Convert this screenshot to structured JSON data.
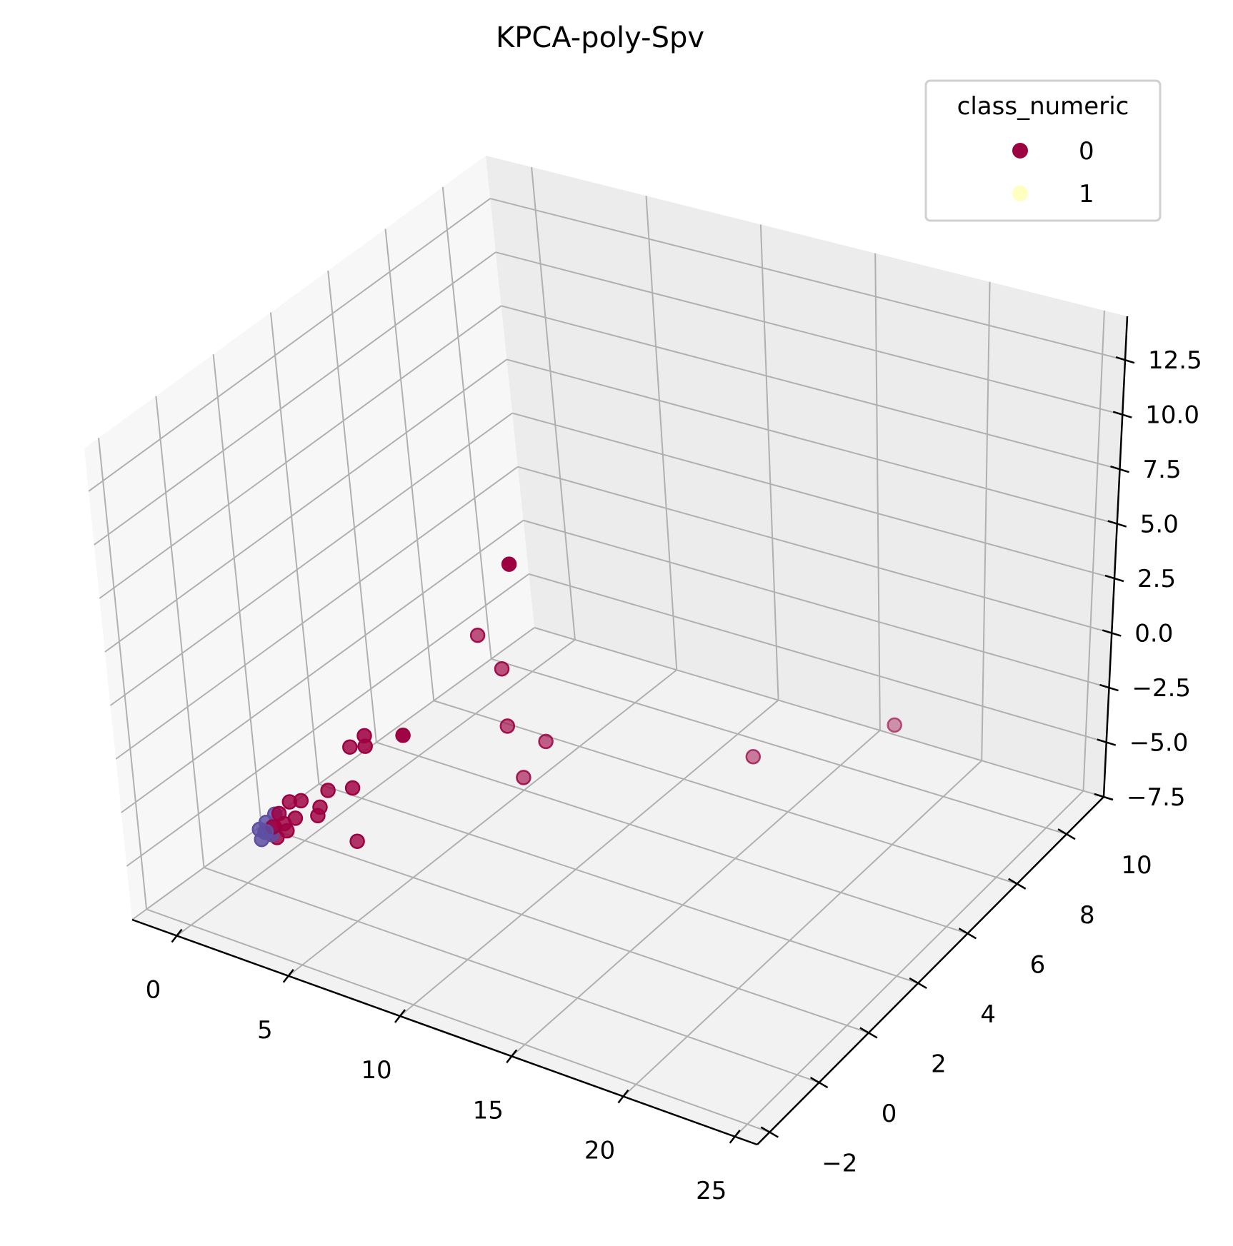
{
  "chart_data": {
    "type": "scatter3d",
    "title": "KPCA-poly-Spv",
    "xlabel": "",
    "ylabel": "",
    "zlabel": "",
    "xlim": [
      -2,
      26
    ],
    "ylim": [
      -2.5,
      11.5
    ],
    "zlim": [
      -7.5,
      14.5
    ],
    "x_ticks": [
      "0",
      "5",
      "10",
      "15",
      "20",
      "25"
    ],
    "x_tick_values": [
      0,
      5,
      10,
      15,
      20,
      25
    ],
    "y_ticks": [
      "−2",
      "0",
      "2",
      "4",
      "6",
      "8",
      "10"
    ],
    "y_tick_values": [
      -2,
      0,
      2,
      4,
      6,
      8,
      10
    ],
    "z_ticks": [
      "−7.5",
      "−5.0",
      "−2.5",
      "0.0",
      "2.5",
      "5.0",
      "7.5",
      "10.0",
      "12.5"
    ],
    "z_tick_values": [
      -7.5,
      -5,
      -2.5,
      0,
      2.5,
      5,
      7.5,
      10,
      12.5
    ],
    "grid": true,
    "legend": {
      "title": "class_numeric",
      "position": "top-right",
      "entries": [
        {
          "label": "0",
          "color": "#9e0142"
        },
        {
          "label": "1",
          "color": "#ffffbf"
        }
      ]
    },
    "colors": {
      "class0": "#9e0142",
      "class1": "#ffffbf",
      "class1_display": "#5e4fa2"
    },
    "series": [
      {
        "name": "0",
        "points": [
          [
            13.9,
            -0.6,
            14.2
          ],
          [
            8.6,
            -0.6,
            3.5
          ],
          [
            5.2,
            0.6,
            0.8
          ],
          [
            5.2,
            0.6,
            0.3
          ],
          [
            3.8,
            1.1,
            -0.8
          ],
          [
            3.9,
            1.0,
            -2.6
          ],
          [
            2.6,
            1.1,
            -3.3
          ],
          [
            2.0,
            0.6,
            -3.5
          ],
          [
            1.6,
            0.5,
            -3.6
          ],
          [
            1.8,
            0.5,
            -4.3
          ],
          [
            1.2,
            0.4,
            -4.2
          ],
          [
            1.4,
            0.4,
            -4.6
          ],
          [
            1.5,
            0.4,
            -4.9
          ],
          [
            1.0,
            0.3,
            -4.8
          ],
          [
            2.3,
            1.0,
            -4.1
          ],
          [
            2.3,
            0.9,
            -4.4
          ],
          [
            0.8,
            0.5,
            -5.1
          ],
          [
            1.0,
            0.4,
            -5.4
          ],
          [
            3.2,
            1.5,
            -5.9
          ],
          [
            6.4,
            3.8,
            2.6
          ],
          [
            7.0,
            4.1,
            0.9
          ],
          [
            6.8,
            4.3,
            -2.1
          ],
          [
            7.6,
            5.0,
            -3.3
          ],
          [
            6.7,
            4.8,
            -5.1
          ],
          [
            13.4,
            8.0,
            -5.4
          ],
          [
            17.0,
            10.5,
            -5.6
          ]
        ]
      },
      {
        "name": "1",
        "points": [
          [
            1.0,
            0.4,
            -4.3
          ],
          [
            0.7,
            0.3,
            -4.7
          ],
          [
            0.8,
            0.2,
            -5.0
          ],
          [
            0.9,
            0.3,
            -5.2
          ],
          [
            0.6,
            0.3,
            -5.2
          ],
          [
            0.5,
            0.2,
            -5.0
          ],
          [
            0.7,
            0.1,
            -5.3
          ]
        ]
      }
    ]
  }
}
